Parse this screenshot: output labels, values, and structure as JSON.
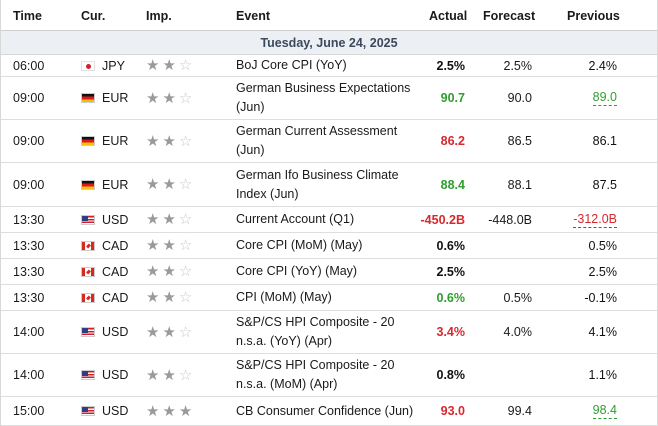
{
  "header": {
    "time": "Time",
    "currency": "Cur.",
    "importance": "Imp.",
    "event": "Event",
    "actual": "Actual",
    "forecast": "Forecast",
    "previous": "Previous"
  },
  "date_label": "Tuesday, June 24, 2025",
  "colors": {
    "positive": "#2f9e2f",
    "negative": "#d8282e",
    "neutral": "#111111"
  },
  "rows": [
    {
      "time": "06:00",
      "flag": "japan-flag-icon",
      "cur": "JPY",
      "stars": 2,
      "event": "BoJ Core CPI (YoY)",
      "actual": "2.5%",
      "actual_tone": "black",
      "forecast": "2.5%",
      "previous": "2.4%",
      "previous_tone": "black",
      "prev_revised": false
    },
    {
      "time": "09:00",
      "flag": "germany-flag-icon",
      "cur": "EUR",
      "stars": 2,
      "event": "German Business Expectations (Jun)",
      "actual": "90.7",
      "actual_tone": "green",
      "forecast": "90.0",
      "previous": "89.0",
      "previous_tone": "green",
      "prev_revised": true
    },
    {
      "time": "09:00",
      "flag": "germany-flag-icon",
      "cur": "EUR",
      "stars": 2,
      "event": "German Current Assessment (Jun)",
      "actual": "86.2",
      "actual_tone": "red",
      "forecast": "86.5",
      "previous": "86.1",
      "previous_tone": "black",
      "prev_revised": false
    },
    {
      "time": "09:00",
      "flag": "germany-flag-icon",
      "cur": "EUR",
      "stars": 2,
      "event": "German Ifo Business Climate Index (Jun)",
      "actual": "88.4",
      "actual_tone": "green",
      "forecast": "88.1",
      "previous": "87.5",
      "previous_tone": "black",
      "prev_revised": false
    },
    {
      "time": "13:30",
      "flag": "usa-flag-icon",
      "cur": "USD",
      "stars": 2,
      "event": "Current Account (Q1)",
      "actual": "-450.2B",
      "actual_tone": "red",
      "forecast": "-448.0B",
      "previous": "-312.0B",
      "previous_tone": "red",
      "prev_revised": true
    },
    {
      "time": "13:30",
      "flag": "canada-flag-icon",
      "cur": "CAD",
      "stars": 2,
      "event": "Core CPI (MoM) (May)",
      "actual": "0.6%",
      "actual_tone": "black",
      "forecast": "",
      "previous": "0.5%",
      "previous_tone": "black",
      "prev_revised": false
    },
    {
      "time": "13:30",
      "flag": "canada-flag-icon",
      "cur": "CAD",
      "stars": 2,
      "event": "Core CPI (YoY) (May)",
      "actual": "2.5%",
      "actual_tone": "black",
      "forecast": "",
      "previous": "2.5%",
      "previous_tone": "black",
      "prev_revised": false
    },
    {
      "time": "13:30",
      "flag": "canada-flag-icon",
      "cur": "CAD",
      "stars": 2,
      "event": "CPI (MoM) (May)",
      "actual": "0.6%",
      "actual_tone": "green",
      "forecast": "0.5%",
      "previous": "-0.1%",
      "previous_tone": "black",
      "prev_revised": false
    },
    {
      "time": "14:00",
      "flag": "usa-flag-icon",
      "cur": "USD",
      "stars": 2,
      "event": "S&P/CS HPI Composite - 20 n.s.a. (YoY) (Apr)",
      "actual": "3.4%",
      "actual_tone": "red",
      "forecast": "4.0%",
      "previous": "4.1%",
      "previous_tone": "black",
      "prev_revised": false
    },
    {
      "time": "14:00",
      "flag": "usa-flag-icon",
      "cur": "USD",
      "stars": 2,
      "event": "S&P/CS HPI Composite - 20 n.s.a. (MoM) (Apr)",
      "actual": "0.8%",
      "actual_tone": "black",
      "forecast": "",
      "previous": "1.1%",
      "previous_tone": "black",
      "prev_revised": false
    },
    {
      "time": "15:00",
      "flag": "usa-flag-icon",
      "cur": "USD",
      "stars": 3,
      "event": "CB Consumer Confidence (Jun)",
      "actual": "93.0",
      "actual_tone": "red",
      "forecast": "99.4",
      "previous": "98.4",
      "previous_tone": "green",
      "prev_revised": true
    }
  ]
}
